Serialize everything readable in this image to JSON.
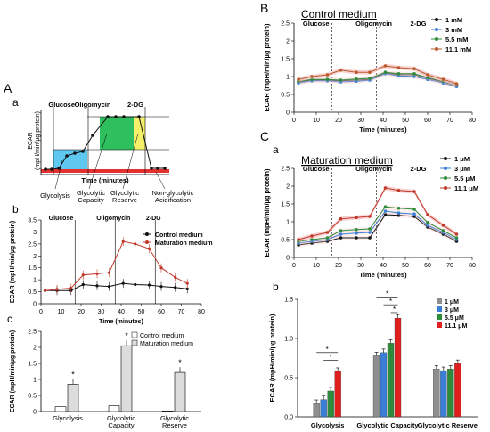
{
  "panel_labels": {
    "A": "A",
    "a": "a",
    "b_left": "b",
    "c_left": "c",
    "B": "B",
    "C": "C",
    "Ca": "a",
    "Cb": "b"
  },
  "colors": {
    "black": "#111111",
    "blue": "#3a7fd5",
    "green": "#2e8b3c",
    "red": "#e0201f",
    "gray": "#b5b5b5",
    "cyan_fill": "#5ec8f0",
    "green_fill": "#2fbf5e",
    "yellow_fill": "#f4f06a",
    "pink_band": "#f7c7c7"
  },
  "schematic": {
    "ylabel": "ECAR\n(mpH/min/µg protein)",
    "xlabel": "Time (minutes)",
    "injections": [
      "Glucose",
      "Oligomycin",
      "2-DG"
    ],
    "labels": [
      "Glycolysis",
      "Glycolytic\nCapacity",
      "Glycolytic\nReserve",
      "Non-glycolytic\nAcidification"
    ]
  },
  "chart_data": [
    {
      "id": "Ab",
      "type": "line",
      "xlabel": "Time (minutes)",
      "ylabel": "ECAR (mpH/min/µg protein)",
      "xlim": [
        0,
        80
      ],
      "ylim": [
        0,
        3.5
      ],
      "xticks": [
        0,
        10,
        20,
        30,
        40,
        50,
        60,
        70,
        80
      ],
      "yticks": [
        0,
        0.5,
        1,
        1.5,
        2,
        2.5,
        3,
        3.5
      ],
      "injections": [
        {
          "label": "Glucose",
          "x": 17
        },
        {
          "label": "Oligomycin",
          "x": 37
        },
        {
          "label": "2-DG",
          "x": 57
        }
      ],
      "x": [
        2,
        8,
        15,
        21,
        28,
        34,
        41,
        47,
        54,
        60,
        67,
        73
      ],
      "series": [
        {
          "name": "Control medium",
          "color": "#111111",
          "values": [
            0.55,
            0.55,
            0.55,
            0.8,
            0.75,
            0.72,
            0.85,
            0.8,
            0.78,
            0.72,
            0.68,
            0.62
          ]
        },
        {
          "name": "Maturation medium",
          "color": "#c0392b",
          "values": [
            0.55,
            0.6,
            0.65,
            1.2,
            1.25,
            1.3,
            2.6,
            2.5,
            2.3,
            1.5,
            1.1,
            0.85
          ]
        }
      ],
      "legend": "top-right"
    },
    {
      "id": "Ac",
      "type": "bar",
      "ylabel": "ECAR (mpH/min/µg protein)",
      "ylim": [
        0,
        2.5
      ],
      "yticks": [
        0,
        0.5,
        1,
        1.5,
        2,
        2.5
      ],
      "categories": [
        "Glycolysis",
        "Glycolytic\nCapacity",
        "Glycolytic\nReserve"
      ],
      "series": [
        {
          "name": "Control medium",
          "values": [
            0.15,
            0.18,
            0.02
          ]
        },
        {
          "name": "Maturation medium",
          "values": [
            0.85,
            2.05,
            1.22
          ]
        }
      ],
      "significance": [
        "*",
        "*",
        "*"
      ],
      "legend": "top-right"
    },
    {
      "id": "B",
      "type": "line",
      "title": "Control  medium",
      "xlabel": "Time (minutes)",
      "ylabel": "ECAR (mpH/min/µg protein)",
      "xlim": [
        0,
        80
      ],
      "ylim": [
        0,
        2.5
      ],
      "xticks": [
        0,
        10,
        20,
        30,
        40,
        50,
        60,
        70,
        80
      ],
      "yticks": [
        0,
        0.5,
        1,
        1.5,
        2,
        2.5
      ],
      "injections": [
        {
          "label": "Glucose",
          "x": 17
        },
        {
          "label": "Oligomycin",
          "x": 37
        },
        {
          "label": "2-DG",
          "x": 57
        }
      ],
      "x": [
        2,
        8,
        15,
        21,
        28,
        34,
        41,
        47,
        54,
        60,
        67,
        73
      ],
      "series": [
        {
          "name": "1 mM",
          "color": "#111111",
          "values": [
            0.85,
            0.9,
            0.9,
            0.88,
            0.9,
            0.92,
            1.1,
            1.05,
            1.05,
            0.95,
            0.85,
            0.75
          ]
        },
        {
          "name": "3 mM",
          "color": "#3a7fd5",
          "values": [
            0.82,
            0.88,
            0.88,
            0.85,
            0.87,
            0.9,
            1.08,
            1.02,
            1.0,
            0.92,
            0.82,
            0.72
          ]
        },
        {
          "name": "5.5 mM",
          "color": "#2e8b3c",
          "values": [
            0.87,
            0.92,
            0.92,
            0.9,
            0.93,
            0.95,
            1.12,
            1.08,
            1.08,
            0.97,
            0.87,
            0.77
          ]
        },
        {
          "name": "11.1 mM",
          "color": "#b85a2e",
          "values": [
            0.92,
            1.0,
            1.05,
            1.18,
            1.12,
            1.12,
            1.3,
            1.25,
            1.22,
            1.05,
            0.92,
            0.8
          ]
        }
      ],
      "legend": "top-right"
    },
    {
      "id": "Ca",
      "type": "line",
      "title": "Maturation medium",
      "xlabel": "Time (minutes)",
      "ylabel": "ECAR (mpH/min/µg protein)",
      "xlim": [
        0,
        80
      ],
      "ylim": [
        0,
        2.5
      ],
      "xticks": [
        0,
        10,
        20,
        30,
        40,
        50,
        60,
        70,
        80
      ],
      "yticks": [
        0,
        0.5,
        1,
        1.5,
        2,
        2.5
      ],
      "injections": [
        {
          "label": "Glucose",
          "x": 17
        },
        {
          "label": "Oligomycin",
          "x": 37
        },
        {
          "label": "2-DG",
          "x": 57
        }
      ],
      "x": [
        2,
        8,
        15,
        21,
        28,
        34,
        41,
        47,
        54,
        60,
        67,
        73
      ],
      "series": [
        {
          "name": "1 μM",
          "color": "#111111",
          "values": [
            0.35,
            0.4,
            0.45,
            0.55,
            0.55,
            0.55,
            1.2,
            1.18,
            1.15,
            0.85,
            0.65,
            0.45
          ]
        },
        {
          "name": "3 μM",
          "color": "#3a7fd5",
          "values": [
            0.4,
            0.45,
            0.5,
            0.65,
            0.68,
            0.7,
            1.3,
            1.25,
            1.22,
            0.9,
            0.7,
            0.5
          ]
        },
        {
          "name": "5.5 μM",
          "color": "#2e8b3c",
          "values": [
            0.45,
            0.5,
            0.55,
            0.75,
            0.78,
            0.8,
            1.42,
            1.38,
            1.35,
            0.98,
            0.75,
            0.55
          ]
        },
        {
          "name": "11.1 μM",
          "color": "#c0392b",
          "values": [
            0.5,
            0.6,
            0.7,
            1.08,
            1.12,
            1.15,
            1.95,
            1.88,
            1.85,
            1.2,
            0.9,
            0.65
          ]
        }
      ],
      "legend": "top-right"
    },
    {
      "id": "Cb",
      "type": "bar",
      "ylabel": "ECAR (mpH/min/µg protein)",
      "ylim": [
        0,
        1.5
      ],
      "yticks": [
        0,
        0.5,
        1,
        1.5
      ],
      "categories": [
        "Glycolysis",
        "Glycolytic Capacity",
        "Glycolytic Reserve"
      ],
      "series": [
        {
          "name": "1 μM",
          "color": "#8e8e8e",
          "values": [
            0.17,
            0.78,
            0.61
          ]
        },
        {
          "name": "3 μM",
          "color": "#3a7fd5",
          "values": [
            0.22,
            0.82,
            0.59
          ]
        },
        {
          "name": "5.5 μM",
          "color": "#2e8b3c",
          "values": [
            0.33,
            0.94,
            0.61
          ]
        },
        {
          "name": "11.1 μM",
          "color": "#e0201f",
          "values": [
            0.58,
            1.26,
            0.68
          ]
        }
      ],
      "significance_brackets": [
        "*",
        "*",
        "*",
        "*",
        "*"
      ],
      "legend": "top-right"
    }
  ]
}
